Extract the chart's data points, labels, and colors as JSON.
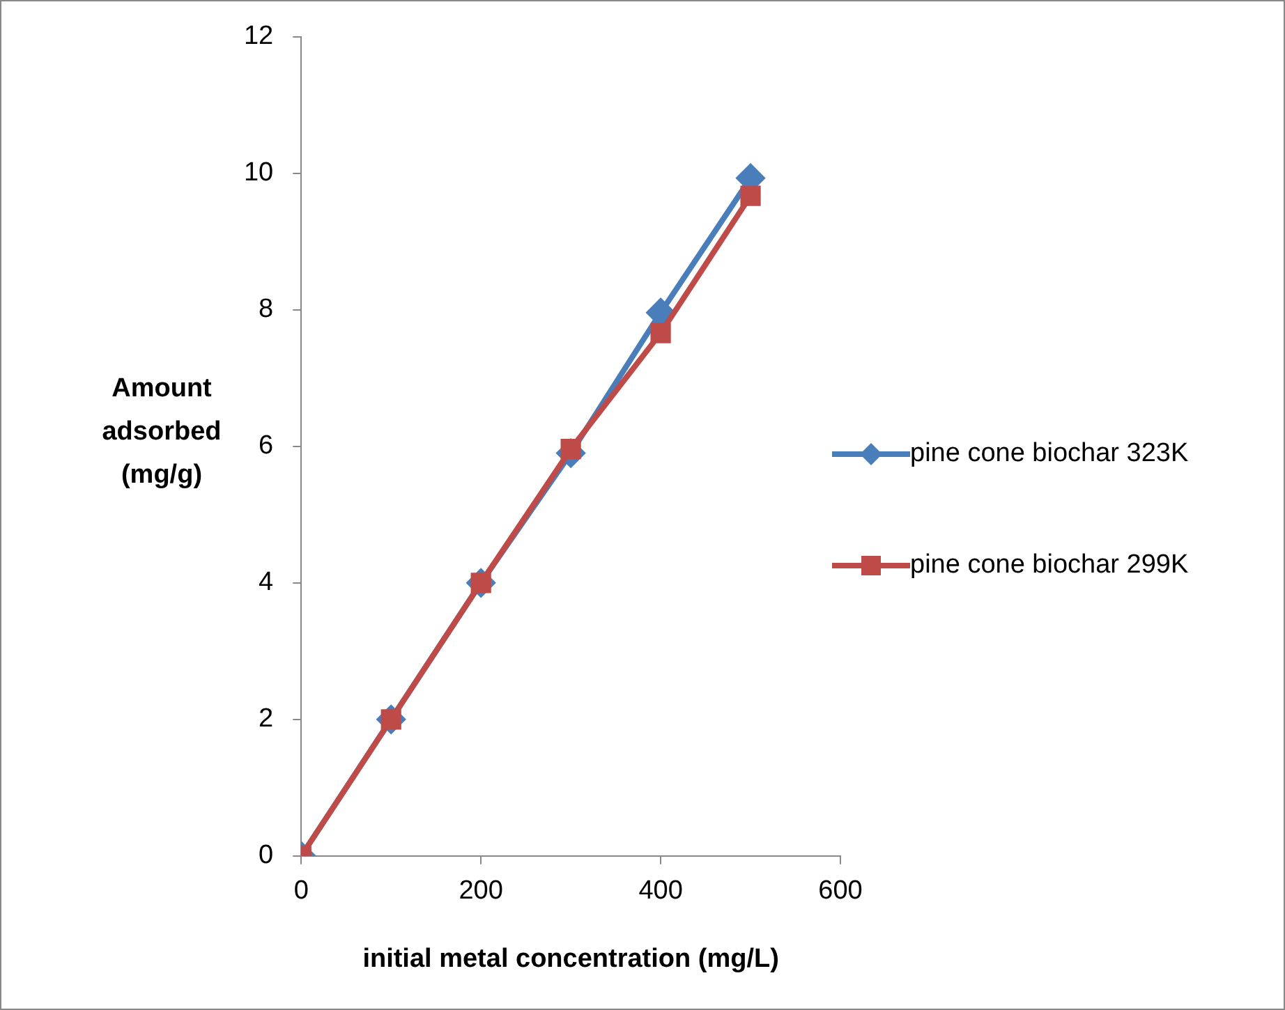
{
  "chart_data": {
    "type": "line",
    "xlabel": "initial metal concentration (mg/L)",
    "ylabel": "Amount adsorbed (mg/g)",
    "x": [
      0,
      100,
      200,
      300,
      400,
      500
    ],
    "series": [
      {
        "name": "pine cone biochar 323K",
        "color": "#4a7ebb",
        "marker": "diamond",
        "values": [
          0,
          2,
          4,
          5.9,
          7.96,
          9.93
        ]
      },
      {
        "name": "pine cone biochar 299K",
        "color": "#be4b48",
        "marker": "square",
        "values": [
          0,
          2,
          4,
          5.96,
          7.66,
          9.67
        ]
      }
    ],
    "xlim": [
      0,
      600
    ],
    "xticks": [
      0,
      200,
      400,
      600
    ],
    "ylim": [
      0,
      12
    ],
    "yticks": [
      0,
      2,
      4,
      6,
      8,
      10,
      12
    ],
    "grid": false,
    "legend": "right",
    "line_style": "solid"
  }
}
